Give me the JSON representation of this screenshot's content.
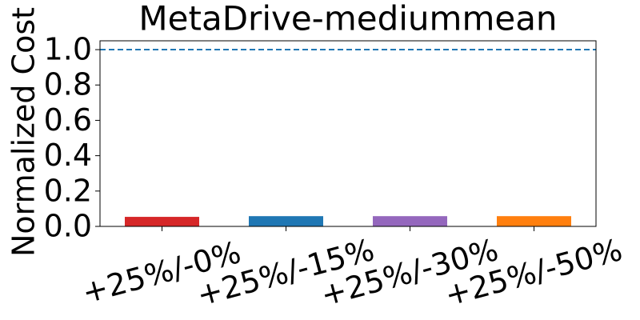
{
  "chart_data": {
    "type": "bar",
    "title": "MetaDrive-mediummean",
    "y_label": "Normalized Cost",
    "categories": [
      "+25%/-0%",
      "+25%/-15%",
      "+25%/-30%",
      "+25%/-50%"
    ],
    "values": [
      0.054,
      0.058,
      0.058,
      0.058
    ],
    "colors": [
      "#d62728",
      "#1f77b4",
      "#9467bd",
      "#ff7f0e"
    ],
    "ylim": [
      0,
      1.05
    ],
    "yticks": [
      {
        "value": 0,
        "label": "0.0"
      },
      {
        "value": 0.2,
        "label": "0.2"
      },
      {
        "value": 0.4,
        "label": "0.4"
      },
      {
        "value": 0.6,
        "label": "0.6"
      },
      {
        "value": 0.8,
        "label": "0.8"
      },
      {
        "value": 1,
        "label": "1.0"
      }
    ],
    "reference_line": {
      "value": 1,
      "color": "#1f77b4"
    }
  }
}
